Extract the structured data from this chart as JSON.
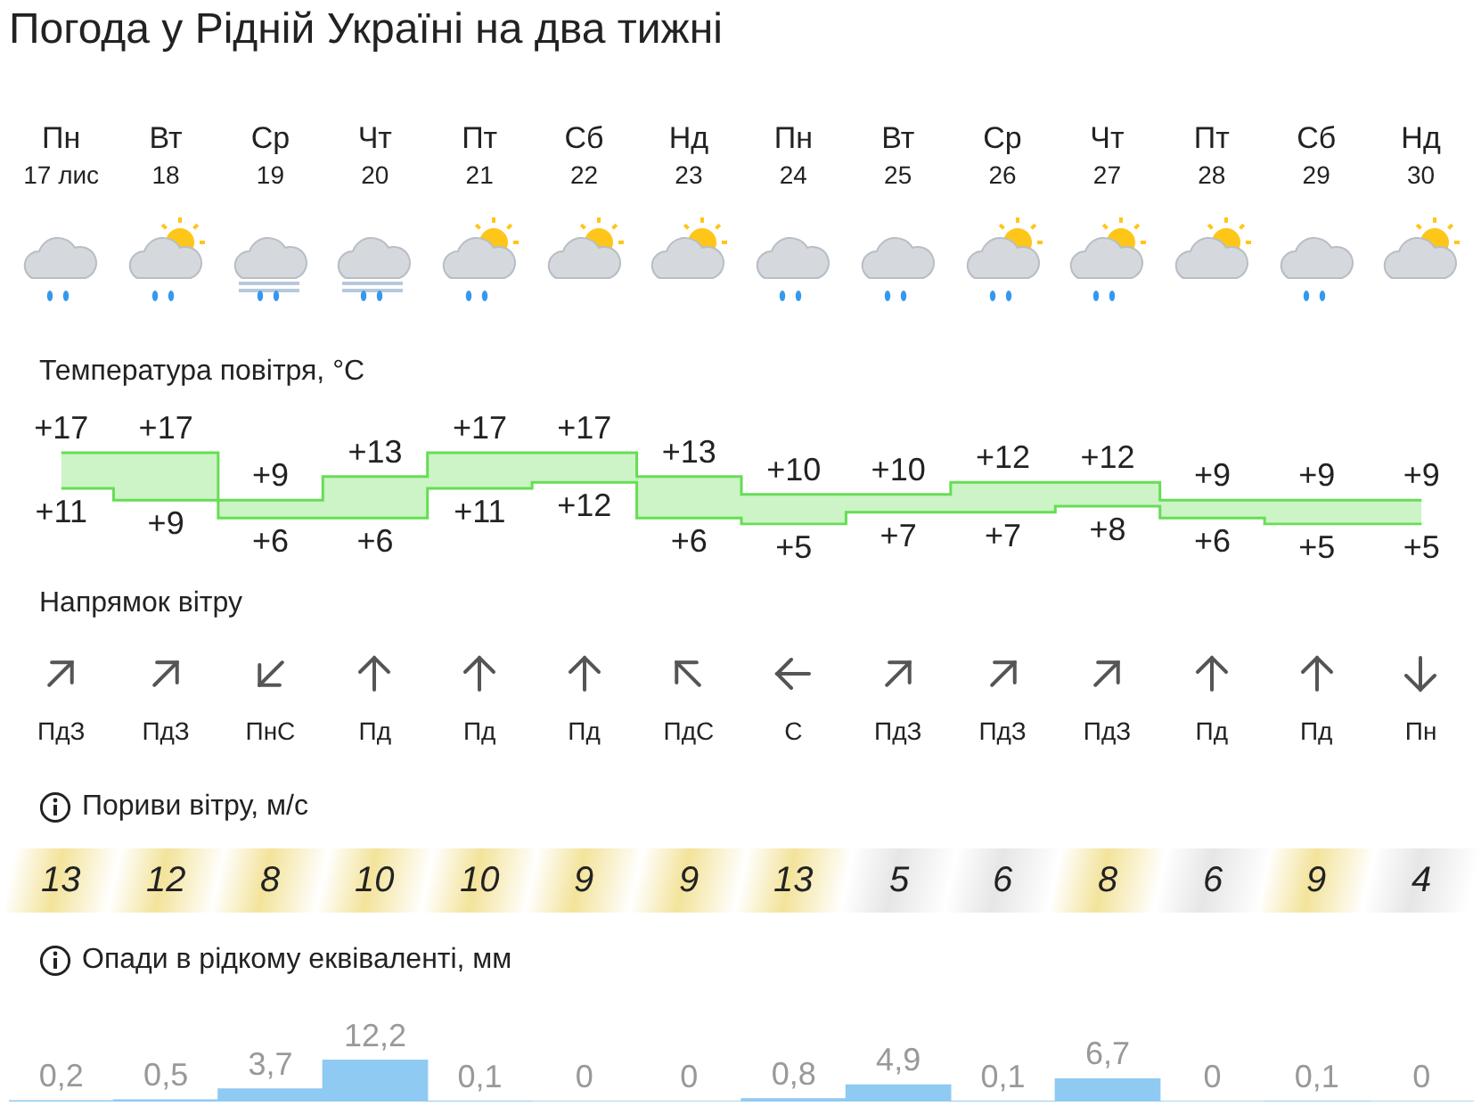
{
  "chart_data": [
    {
      "type": "step",
      "title": "Погода у Рідній Україні на два тижні",
      "subtitle": "Температура повітря, °C",
      "categories": [
        "Пн 17 лис",
        "Вт 18",
        "Ср 19",
        "Чт 20",
        "Пт 21",
        "Сб 22",
        "Нд 23",
        "Пн 24",
        "Вт 25",
        "Ср 26",
        "Чт 27",
        "Пт 28",
        "Сб 29",
        "Нд 30"
      ],
      "tick_labels": "x",
      "series": [
        {
          "name": null,
          "color": "#66dd55",
          "values": [
            17,
            17,
            9,
            13,
            17,
            17,
            13,
            10,
            10,
            12,
            12,
            9,
            9,
            9
          ],
          "value_labels": [
            "+17",
            "+17",
            "+9",
            "+13",
            "+17",
            "+17",
            "+13",
            "+10",
            "+10",
            "+12",
            "+12",
            "+9",
            "+9",
            "+9"
          ]
        },
        {
          "name": null,
          "color": "#66dd55",
          "values": [
            11,
            9,
            6,
            6,
            11,
            12,
            6,
            5,
            7,
            7,
            8,
            6,
            5,
            5
          ],
          "value_labels": [
            "+11",
            "+9",
            "+6",
            "+6",
            "+11",
            "+12",
            "+6",
            "+5",
            "+7",
            "+7",
            "+8",
            "+6",
            "+5",
            "+5"
          ]
        }
      ]
    },
    {
      "type": "other",
      "title": "Напрямок вітру",
      "categories": [
        "ПдЗ",
        "ПдЗ",
        "ПнС",
        "Пд",
        "Пд",
        "Пд",
        "ПдС",
        "С",
        "ПдЗ",
        "ПдЗ",
        "ПдЗ",
        "Пд",
        "Пд",
        "Пн"
      ]
    },
    {
      "type": "other",
      "title": "Пориви вітру, м/с",
      "values": [
        13,
        12,
        8,
        10,
        10,
        9,
        9,
        13,
        5,
        6,
        8,
        6,
        9,
        4
      ],
      "data_labels": true,
      "colors": [
        "#f3e39a",
        "#f3e39a",
        "#f3e39a",
        "#f3e39a",
        "#f3e39a",
        "#f3e39a",
        "#f3e39a",
        "#f3e39a",
        "#e6e6e6",
        "#e6e6e6",
        "#f3e39a",
        "#e6e6e6",
        "#f3e39a",
        "#e6e6e6"
      ]
    },
    {
      "type": "bar",
      "title": "Опади в рідкому еквіваленті, мм",
      "color": "#8fcaf2",
      "values": [
        0.2,
        0.5,
        3.7,
        12.2,
        0.1,
        0,
        0,
        0.8,
        4.9,
        0.1,
        6.7,
        0,
        0.1,
        0
      ],
      "value_labels": [
        "0,2",
        "0,5",
        "3,7",
        "12,2",
        "0,1",
        "0",
        "0",
        "0,8",
        "4,9",
        "0,1",
        "6,7",
        "0",
        "0,1",
        "0"
      ]
    }
  ]
}
